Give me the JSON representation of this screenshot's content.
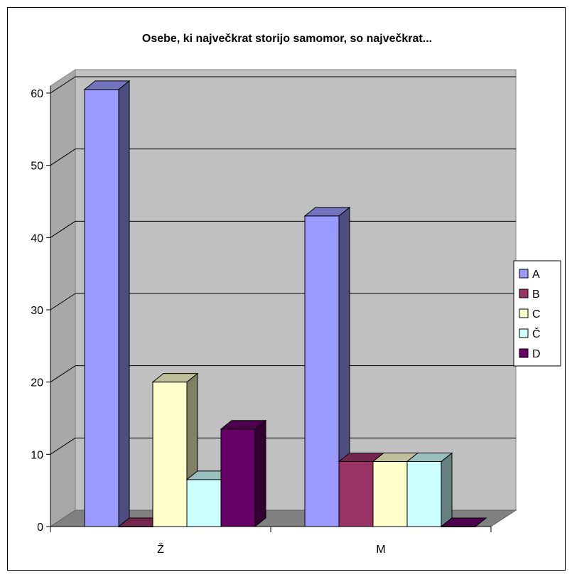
{
  "chart_data": {
    "type": "bar",
    "title": "Osebe, ki največkrat storijo samomor, so največkrat...",
    "categories": [
      "Ž",
      "M"
    ],
    "series": [
      {
        "name": "A",
        "values": [
          60.5,
          43
        ],
        "color": "#9999ff"
      },
      {
        "name": "B",
        "values": [
          0,
          9
        ],
        "color": "#993366"
      },
      {
        "name": "C",
        "values": [
          20,
          9
        ],
        "color": "#ffffcc"
      },
      {
        "name": "Č",
        "values": [
          6.5,
          9
        ],
        "color": "#ccffff"
      },
      {
        "name": "D",
        "values": [
          13.5,
          0
        ],
        "color": "#660066"
      }
    ],
    "y_ticks": [
      "0",
      "10",
      "20",
      "30",
      "40",
      "50",
      "60"
    ],
    "ylim": [
      0,
      60
    ],
    "grid": true,
    "three_d": true,
    "legend_position": "right",
    "wall_color": "#c0c0c0",
    "floor_color": "#808080"
  }
}
